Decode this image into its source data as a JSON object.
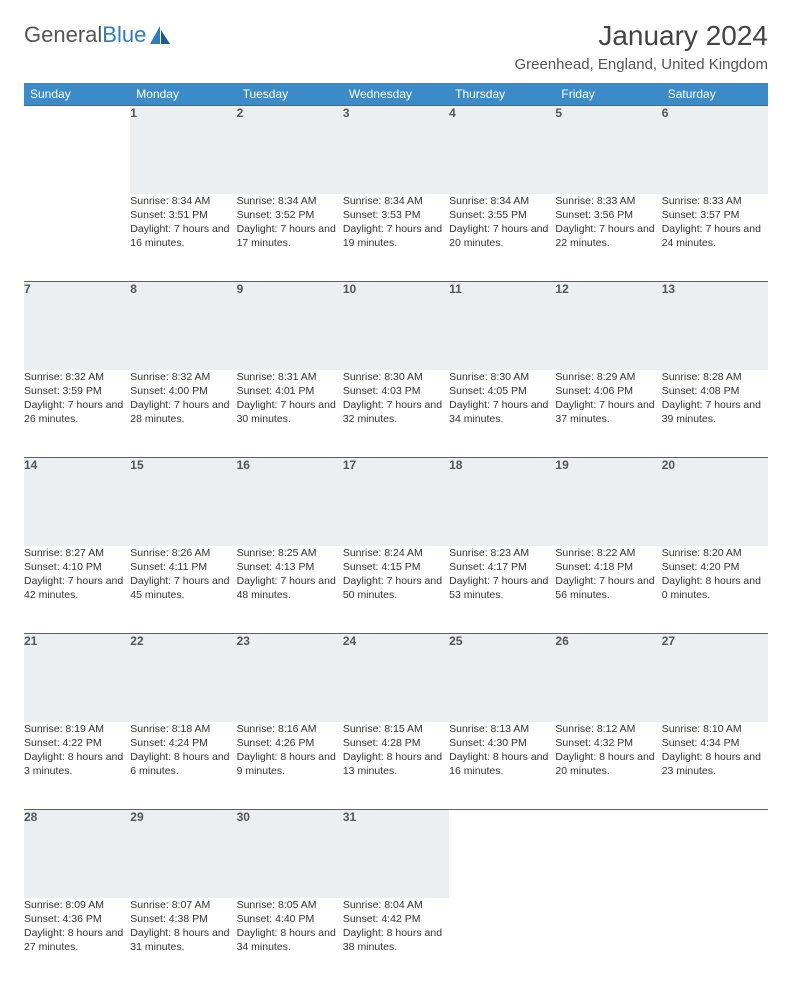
{
  "logo": {
    "word1": "General",
    "word2": "Blue"
  },
  "title": "January 2024",
  "location": "Greenhead, England, United Kingdom",
  "colors": {
    "header_bg": "#3b8bc9",
    "header_text": "#ffffff",
    "daynum_bg": "#eceff2",
    "daynum_border": "#2e6ea8",
    "text": "#333333",
    "logo_gray": "#555555",
    "logo_blue": "#2e7cc0",
    "page_bg": "#ffffff"
  },
  "weekdays": [
    "Sunday",
    "Monday",
    "Tuesday",
    "Wednesday",
    "Thursday",
    "Friday",
    "Saturday"
  ],
  "weeks": [
    [
      null,
      {
        "d": "1",
        "sr": "8:34 AM",
        "ss": "3:51 PM",
        "dl": "7 hours and 16 minutes."
      },
      {
        "d": "2",
        "sr": "8:34 AM",
        "ss": "3:52 PM",
        "dl": "7 hours and 17 minutes."
      },
      {
        "d": "3",
        "sr": "8:34 AM",
        "ss": "3:53 PM",
        "dl": "7 hours and 19 minutes."
      },
      {
        "d": "4",
        "sr": "8:34 AM",
        "ss": "3:55 PM",
        "dl": "7 hours and 20 minutes."
      },
      {
        "d": "5",
        "sr": "8:33 AM",
        "ss": "3:56 PM",
        "dl": "7 hours and 22 minutes."
      },
      {
        "d": "6",
        "sr": "8:33 AM",
        "ss": "3:57 PM",
        "dl": "7 hours and 24 minutes."
      }
    ],
    [
      {
        "d": "7",
        "sr": "8:32 AM",
        "ss": "3:59 PM",
        "dl": "7 hours and 26 minutes."
      },
      {
        "d": "8",
        "sr": "8:32 AM",
        "ss": "4:00 PM",
        "dl": "7 hours and 28 minutes."
      },
      {
        "d": "9",
        "sr": "8:31 AM",
        "ss": "4:01 PM",
        "dl": "7 hours and 30 minutes."
      },
      {
        "d": "10",
        "sr": "8:30 AM",
        "ss": "4:03 PM",
        "dl": "7 hours and 32 minutes."
      },
      {
        "d": "11",
        "sr": "8:30 AM",
        "ss": "4:05 PM",
        "dl": "7 hours and 34 minutes."
      },
      {
        "d": "12",
        "sr": "8:29 AM",
        "ss": "4:06 PM",
        "dl": "7 hours and 37 minutes."
      },
      {
        "d": "13",
        "sr": "8:28 AM",
        "ss": "4:08 PM",
        "dl": "7 hours and 39 minutes."
      }
    ],
    [
      {
        "d": "14",
        "sr": "8:27 AM",
        "ss": "4:10 PM",
        "dl": "7 hours and 42 minutes."
      },
      {
        "d": "15",
        "sr": "8:26 AM",
        "ss": "4:11 PM",
        "dl": "7 hours and 45 minutes."
      },
      {
        "d": "16",
        "sr": "8:25 AM",
        "ss": "4:13 PM",
        "dl": "7 hours and 48 minutes."
      },
      {
        "d": "17",
        "sr": "8:24 AM",
        "ss": "4:15 PM",
        "dl": "7 hours and 50 minutes."
      },
      {
        "d": "18",
        "sr": "8:23 AM",
        "ss": "4:17 PM",
        "dl": "7 hours and 53 minutes."
      },
      {
        "d": "19",
        "sr": "8:22 AM",
        "ss": "4:18 PM",
        "dl": "7 hours and 56 minutes."
      },
      {
        "d": "20",
        "sr": "8:20 AM",
        "ss": "4:20 PM",
        "dl": "8 hours and 0 minutes."
      }
    ],
    [
      {
        "d": "21",
        "sr": "8:19 AM",
        "ss": "4:22 PM",
        "dl": "8 hours and 3 minutes."
      },
      {
        "d": "22",
        "sr": "8:18 AM",
        "ss": "4:24 PM",
        "dl": "8 hours and 6 minutes."
      },
      {
        "d": "23",
        "sr": "8:16 AM",
        "ss": "4:26 PM",
        "dl": "8 hours and 9 minutes."
      },
      {
        "d": "24",
        "sr": "8:15 AM",
        "ss": "4:28 PM",
        "dl": "8 hours and 13 minutes."
      },
      {
        "d": "25",
        "sr": "8:13 AM",
        "ss": "4:30 PM",
        "dl": "8 hours and 16 minutes."
      },
      {
        "d": "26",
        "sr": "8:12 AM",
        "ss": "4:32 PM",
        "dl": "8 hours and 20 minutes."
      },
      {
        "d": "27",
        "sr": "8:10 AM",
        "ss": "4:34 PM",
        "dl": "8 hours and 23 minutes."
      }
    ],
    [
      {
        "d": "28",
        "sr": "8:09 AM",
        "ss": "4:36 PM",
        "dl": "8 hours and 27 minutes."
      },
      {
        "d": "29",
        "sr": "8:07 AM",
        "ss": "4:38 PM",
        "dl": "8 hours and 31 minutes."
      },
      {
        "d": "30",
        "sr": "8:05 AM",
        "ss": "4:40 PM",
        "dl": "8 hours and 34 minutes."
      },
      {
        "d": "31",
        "sr": "8:04 AM",
        "ss": "4:42 PM",
        "dl": "8 hours and 38 minutes."
      },
      null,
      null,
      null
    ]
  ],
  "labels": {
    "sunrise": "Sunrise:",
    "sunset": "Sunset:",
    "daylight": "Daylight:"
  }
}
